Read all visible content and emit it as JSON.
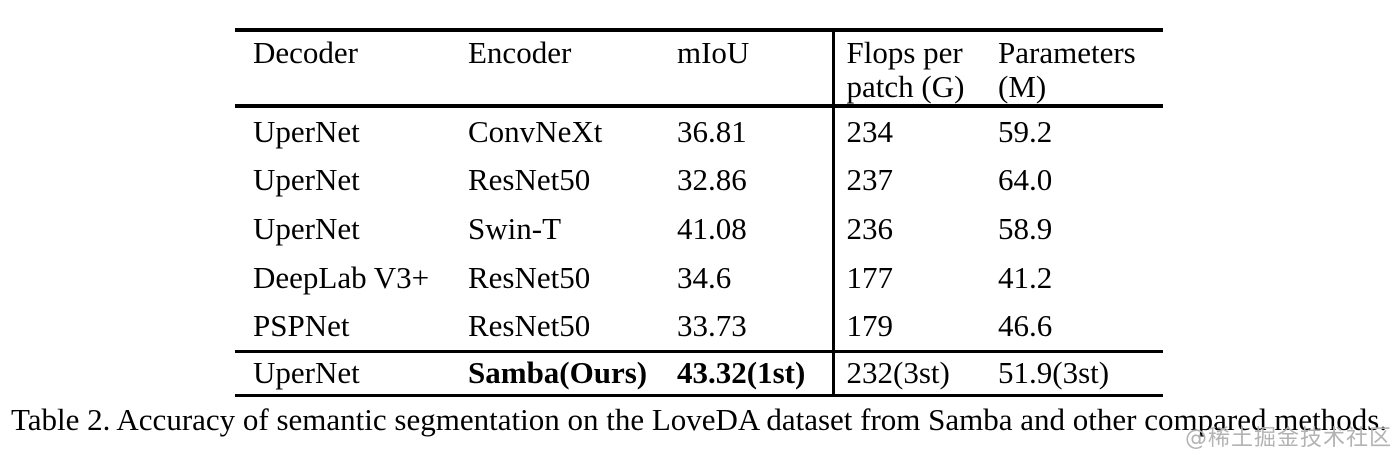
{
  "table": {
    "fields": [
      "decoder",
      "encoder",
      "miou",
      "flops",
      "params"
    ],
    "columns": [
      {
        "id": "decoder",
        "lines": [
          "Decoder"
        ]
      },
      {
        "id": "encoder",
        "lines": [
          "Encoder"
        ]
      },
      {
        "id": "miou",
        "lines": [
          "mIoU"
        ]
      },
      {
        "id": "flops",
        "lines": [
          "Flops per",
          "patch (G)"
        ]
      },
      {
        "id": "params",
        "lines": [
          "Parameters",
          "(M)"
        ]
      }
    ],
    "rows": [
      {
        "decoder": "UperNet",
        "encoder": "ConvNeXt",
        "miou": "36.81",
        "flops": "234",
        "params": "59.2",
        "bold": [],
        "is_best_row": false
      },
      {
        "decoder": "UperNet",
        "encoder": "ResNet50",
        "miou": "32.86",
        "flops": "237",
        "params": "64.0",
        "bold": [],
        "is_best_row": false
      },
      {
        "decoder": "UperNet",
        "encoder": "Swin-T",
        "miou": "41.08",
        "flops": "236",
        "params": "58.9",
        "bold": [],
        "is_best_row": false
      },
      {
        "decoder": "DeepLab V3+",
        "encoder": "ResNet50",
        "miou": "34.6",
        "flops": "177",
        "params": "41.2",
        "bold": [],
        "is_best_row": false
      },
      {
        "decoder": "PSPNet",
        "encoder": "ResNet50",
        "miou": "33.73",
        "flops": "179",
        "params": "46.6",
        "bold": [],
        "is_best_row": false
      },
      {
        "decoder": "UperNet",
        "encoder": "Samba(Ours)",
        "miou": "43.32(1st)",
        "flops": "232(3st)",
        "params": "51.9(3st)",
        "bold": [
          "encoder",
          "miou"
        ],
        "is_best_row": true
      }
    ]
  },
  "caption": "Table 2. Accuracy of semantic segmentation on the LoveDA dataset from Samba and other compared methods.",
  "watermark": "@稀土掘金技术社区",
  "colors": {
    "text": "#000000",
    "background": "#ffffff",
    "rule": "#000000",
    "watermark": "#b3b3b3"
  }
}
